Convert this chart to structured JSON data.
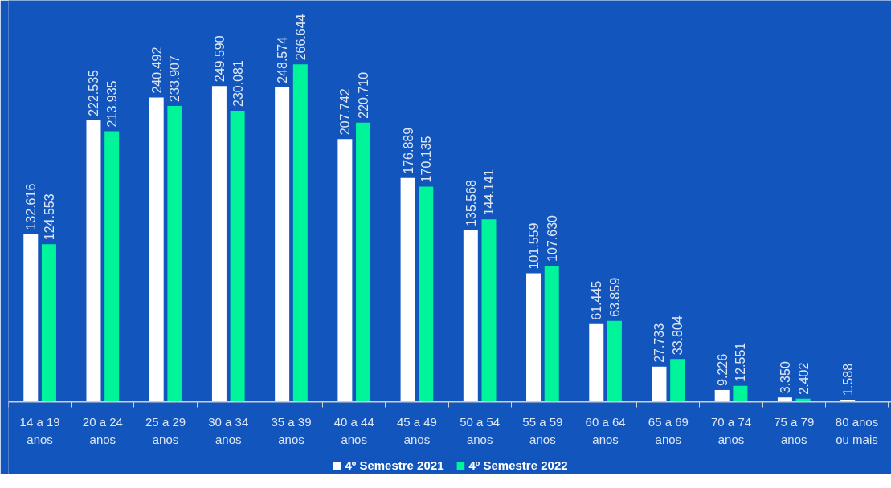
{
  "chart_data": {
    "type": "bar",
    "categories": [
      "14 a 19\nanos",
      "20 a 24\nanos",
      "25 a 29\nanos",
      "30 a 34\nanos",
      "35 a 39\nanos",
      "40 a 44\nanos",
      "45 a 49\nanos",
      "50 a 54\nanos",
      "55 a 59\nanos",
      "60 a 64\nanos",
      "65 a 69\nanos",
      "70 a 74\nanos",
      "75 a 79\nanos",
      "80 anos\nou mais"
    ],
    "series": [
      {
        "name": "4º Semestre 2021",
        "color": "#ffffff",
        "values": [
          132616,
          222535,
          240492,
          249590,
          248574,
          207742,
          176889,
          135568,
          101559,
          61445,
          27733,
          9226,
          3350,
          1588
        ],
        "value_labels": [
          "132.616",
          "222.535",
          "240.492",
          "249.590",
          "248.574",
          "207.742",
          "176.889",
          "135.568",
          "101.559",
          "61.445",
          "27.733",
          "9.226",
          "3.350",
          "1.588"
        ]
      },
      {
        "name": "4º Semestre 2022",
        "color": "#00f59b",
        "values": [
          124553,
          213935,
          233907,
          230081,
          266644,
          220710,
          170135,
          144141,
          107630,
          63859,
          33804,
          12551,
          2402,
          null
        ],
        "value_labels": [
          "124.553",
          "213.935",
          "233.907",
          "230.081",
          "266.644",
          "220.710",
          "170.135",
          "144.141",
          "107.630",
          "63.859",
          "33.804",
          "12.551",
          "2.402",
          null
        ]
      }
    ],
    "legend": "bottom",
    "grid": false
  }
}
